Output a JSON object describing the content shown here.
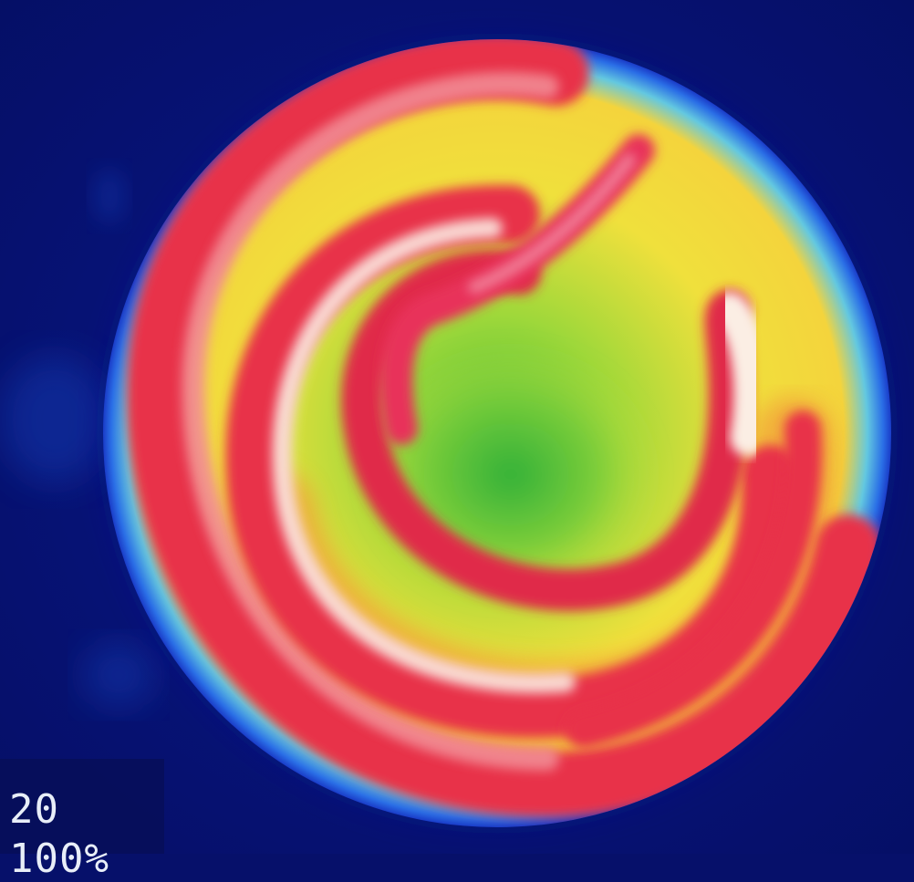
{
  "image": {
    "subject": "thermal-disk-spiral",
    "palette": {
      "background": "#06106a",
      "rim_blue": "#1f5fe0",
      "cyan": "#3fc0e8",
      "yellow": "#f2e23a",
      "green": "#5cc83a",
      "orange": "#f2a03a",
      "red": "#e8304a",
      "pink": "#f08090",
      "white": "#f8ece2"
    }
  },
  "overlay": {
    "line1": "20",
    "line2": "100%"
  }
}
